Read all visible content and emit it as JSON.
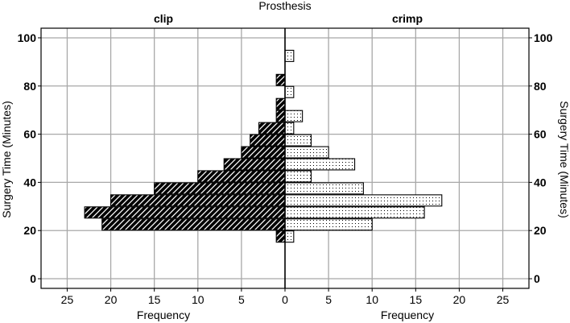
{
  "chart_data": {
    "type": "bar",
    "orientation": "horizontal",
    "layout": "back-to-back",
    "title": "Prosthesis",
    "ylabel": "Surgery Time (Minutes)",
    "xlabel": "Frequency",
    "ylim": [
      -4,
      104
    ],
    "yticks": [
      0,
      20,
      40,
      60,
      80,
      100
    ],
    "xlim": [
      0,
      28
    ],
    "xticks": [
      0,
      5,
      10,
      15,
      20,
      25
    ],
    "grid": true,
    "bin_width": 5,
    "series": [
      {
        "name": "clip",
        "side": "left",
        "pattern": "hatch",
        "color": "#000000",
        "bins": [
          {
            "y": 17.5,
            "value": 1
          },
          {
            "y": 22.5,
            "value": 21
          },
          {
            "y": 27.5,
            "value": 23
          },
          {
            "y": 32.5,
            "value": 20
          },
          {
            "y": 37.5,
            "value": 15
          },
          {
            "y": 42.5,
            "value": 10
          },
          {
            "y": 47.5,
            "value": 7
          },
          {
            "y": 52.5,
            "value": 5
          },
          {
            "y": 57.5,
            "value": 4
          },
          {
            "y": 62.5,
            "value": 3
          },
          {
            "y": 67.5,
            "value": 1
          },
          {
            "y": 72.5,
            "value": 1
          },
          {
            "y": 82.5,
            "value": 1
          }
        ]
      },
      {
        "name": "crimp",
        "side": "right",
        "pattern": "dots",
        "color": "#000000",
        "bins": [
          {
            "y": 17.5,
            "value": 1
          },
          {
            "y": 22.5,
            "value": 10
          },
          {
            "y": 27.5,
            "value": 16
          },
          {
            "y": 32.5,
            "value": 18
          },
          {
            "y": 37.5,
            "value": 9
          },
          {
            "y": 42.5,
            "value": 3
          },
          {
            "y": 47.5,
            "value": 8
          },
          {
            "y": 52.5,
            "value": 5
          },
          {
            "y": 57.5,
            "value": 3
          },
          {
            "y": 62.5,
            "value": 1
          },
          {
            "y": 67.5,
            "value": 2
          },
          {
            "y": 77.5,
            "value": 1
          },
          {
            "y": 92.5,
            "value": 1
          }
        ]
      }
    ]
  }
}
